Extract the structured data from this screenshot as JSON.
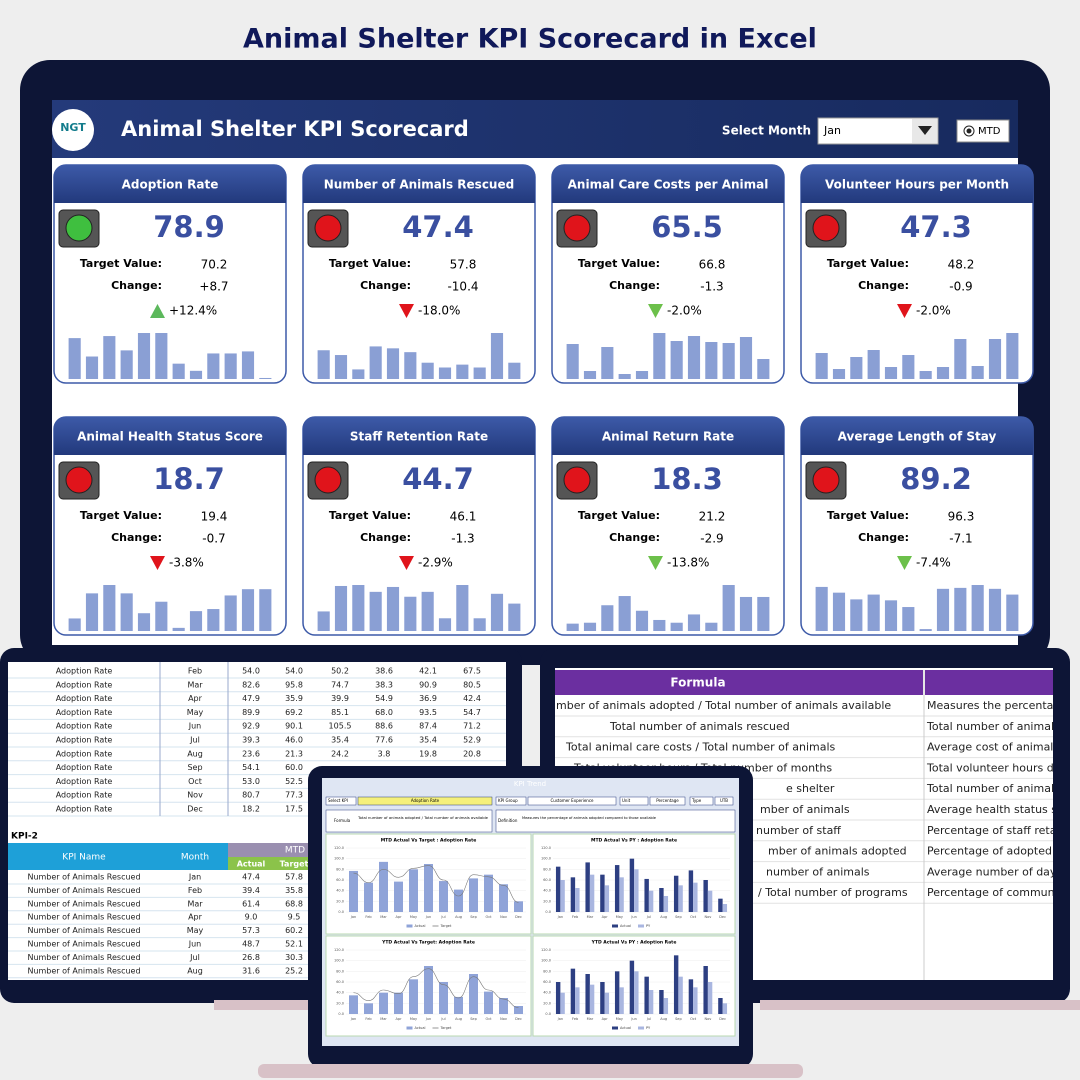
{
  "page_title": "Animal Shelter KPI Scorecard in Excel",
  "dashboard": {
    "logo": "NGT",
    "title": "Animal Shelter KPI Scorecard",
    "select_label": "Select Month",
    "month": "Jan",
    "mode": "MTD",
    "target_label": "Target Value:",
    "change_label": "Change:",
    "cards": [
      {
        "name": "Adoption Rate",
        "light": "#3fbf3f",
        "value": "78.9",
        "target": "70.2",
        "change": "+8.7",
        "pct": "+12.4%",
        "direction": "up",
        "arrow_color": "#5cb85c",
        "bar_color": "#8a9fd4",
        "bars": [
          40,
          22,
          42,
          28,
          45,
          45,
          15,
          8,
          25,
          25,
          27,
          1
        ]
      },
      {
        "name": "Number of Animals Rescued",
        "light": "#e0141b",
        "value": "47.4",
        "target": "57.8",
        "change": "-10.4",
        "pct": "-18.0%",
        "direction": "down",
        "arrow_color": "#e0141b",
        "bar_color": "#8a9fd4",
        "bars": [
          30,
          25,
          10,
          34,
          32,
          28,
          17,
          12,
          15,
          12,
          48,
          17
        ]
      },
      {
        "name": "Animal Care Costs per Animal",
        "light": "#e0141b",
        "value": "65.5",
        "target": "66.8",
        "change": "-1.3",
        "pct": "-2.0%",
        "direction": "down",
        "arrow_color": "#6cc04a",
        "bar_color": "#8a9fd4",
        "bars": [
          35,
          8,
          32,
          5,
          8,
          46,
          38,
          43,
          37,
          36,
          42,
          20
        ]
      },
      {
        "name": "Volunteer Hours per Month",
        "light": "#e0141b",
        "value": "47.3",
        "target": "48.2",
        "change": "-0.9",
        "pct": "-2.0%",
        "direction": "down",
        "arrow_color": "#e0141b",
        "bar_color": "#8a9fd4",
        "bars": [
          26,
          10,
          22,
          29,
          12,
          24,
          8,
          12,
          40,
          13,
          40,
          46
        ]
      },
      {
        "name": "Animal Health Status Score",
        "light": "#e0141b",
        "value": "18.7",
        "target": "19.4",
        "change": "-0.7",
        "pct": "-3.8%",
        "direction": "down",
        "arrow_color": "#e0141b",
        "bar_color": "#8a9fd4",
        "bars": [
          12,
          36,
          44,
          36,
          17,
          28,
          3,
          19,
          21,
          34,
          40,
          40
        ]
      },
      {
        "name": "Staff Retention Rate",
        "light": "#e0141b",
        "value": "44.7",
        "target": "46.1",
        "change": "-1.3",
        "pct": "-2.9%",
        "direction": "down",
        "arrow_color": "#e0141b",
        "bar_color": "#8a9fd4",
        "bars": [
          20,
          46,
          47,
          40,
          45,
          35,
          40,
          13,
          47,
          13,
          38,
          28
        ]
      },
      {
        "name": "Animal Return Rate",
        "light": "#e0141b",
        "value": "18.3",
        "target": "21.2",
        "change": "-2.9",
        "pct": "-13.8%",
        "direction": "down",
        "arrow_color": "#6cc04a",
        "bar_color": "#8a9fd4",
        "bars": [
          8,
          9,
          28,
          38,
          22,
          12,
          9,
          18,
          9,
          50,
          37,
          37
        ]
      },
      {
        "name": "Average Length of Stay",
        "light": "#e0141b",
        "value": "89.2",
        "target": "96.3",
        "change": "-7.1",
        "pct": "-7.4%",
        "direction": "down",
        "arrow_color": "#6cc04a",
        "bar_color": "#8a9fd4",
        "bars": [
          46,
          40,
          33,
          38,
          32,
          25,
          2,
          44,
          45,
          48,
          44,
          38
        ]
      }
    ]
  },
  "left_sheet": {
    "kpi1_rows": [
      [
        "Adoption Rate",
        "Feb",
        "54.0",
        "54.0",
        "50.2",
        "38.6",
        "42.1",
        "67.5"
      ],
      [
        "Adoption Rate",
        "Mar",
        "82.6",
        "95.8",
        "74.7",
        "38.3",
        "90.9",
        "80.5"
      ],
      [
        "Adoption Rate",
        "Apr",
        "47.9",
        "35.9",
        "39.9",
        "54.9",
        "36.9",
        "42.4"
      ],
      [
        "Adoption Rate",
        "May",
        "89.9",
        "69.2",
        "85.1",
        "68.0",
        "93.5",
        "54.7"
      ],
      [
        "Adoption Rate",
        "Jun",
        "92.9",
        "90.1",
        "105.5",
        "88.6",
        "87.4",
        "71.2"
      ],
      [
        "Adoption Rate",
        "Jul",
        "39.3",
        "46.0",
        "35.4",
        "77.6",
        "35.4",
        "52.9"
      ],
      [
        "Adoption Rate",
        "Aug",
        "23.6",
        "21.3",
        "24.2",
        "3.8",
        "19.8",
        "20.8"
      ],
      [
        "Adoption Rate",
        "Sep",
        "54.1",
        "60.0"
      ],
      [
        "Adoption Rate",
        "Oct",
        "53.0",
        "52.5"
      ],
      [
        "Adoption Rate",
        "Nov",
        "80.7",
        "77.3"
      ],
      [
        "Adoption Rate",
        "Dec",
        "18.2",
        "17.5"
      ]
    ],
    "kpi2_label": "KPI-2",
    "kpi2_header": [
      "KPI Name",
      "Month"
    ],
    "kpi2_group": "MTD",
    "kpi2_sub": [
      "Actual",
      "Target"
    ],
    "kpi2_rows": [
      [
        "Number of Animals Rescued",
        "Jan",
        "47.4",
        "57.8"
      ],
      [
        "Number of Animals Rescued",
        "Feb",
        "39.4",
        "35.8"
      ],
      [
        "Number of Animals Rescued",
        "Mar",
        "61.4",
        "68.8"
      ],
      [
        "Number of Animals Rescued",
        "Apr",
        "9.0",
        "9.5"
      ],
      [
        "Number of Animals Rescued",
        "May",
        "57.3",
        "60.2"
      ],
      [
        "Number of Animals Rescued",
        "Jun",
        "48.7",
        "52.1"
      ],
      [
        "Number of Animals Rescued",
        "Jul",
        "26.8",
        "30.3"
      ],
      [
        "Number of Animals Rescued",
        "Aug",
        "31.6",
        "25.2"
      ]
    ]
  },
  "right_sheet": {
    "header": "Formula",
    "rows": [
      [
        "mber of animals adopted / Total number of animals available",
        "Measures the percentag"
      ],
      [
        "Total number of animals rescued",
        "Total number of animals"
      ],
      [
        "Total animal care costs / Total number of animals",
        "Average cost of animal c"
      ],
      [
        "Total volunteer hours / Total number of months",
        "Total volunteer hours de"
      ],
      [
        "e shelter",
        "Total number of animals"
      ],
      [
        "mber of animals",
        "Average health status sc"
      ],
      [
        "number of staff",
        "Percentage of staff retai"
      ],
      [
        "mber of animals adopted",
        "Percentage of adopted a"
      ],
      [
        "number of animals",
        "Average number of days"
      ],
      [
        "/ Total number of programs",
        "Percentage of communi"
      ]
    ]
  },
  "tablet": {
    "title": "KPI Trend",
    "fields": [
      [
        "Select KPI",
        "Adoption Rate"
      ],
      [
        "KPI Group",
        "Customer Experience"
      ],
      [
        "Unit",
        "Percentage"
      ],
      [
        "Type",
        "UTB"
      ]
    ],
    "formula_label": "Formula",
    "formula": "Total number of animals adopted / Total number of animals available",
    "definition_label": "Definition",
    "definition": "Measures the percentage of animals adopted compared to those available",
    "months": [
      "Jan",
      "Feb",
      "Mar",
      "Apr",
      "May",
      "Jun",
      "Jul",
      "Aug",
      "Sep",
      "Oct",
      "Nov",
      "Dec"
    ],
    "ylim": [
      0,
      120
    ],
    "yticks": [
      {
        "value": 0,
        "label": "0.0"
      },
      {
        "value": 20,
        "label": "20.0"
      },
      {
        "value": 40,
        "label": "40.0"
      },
      {
        "value": 60,
        "label": "60.0"
      },
      {
        "value": 80,
        "label": "80.0"
      },
      {
        "value": 100,
        "label": "100.0"
      },
      {
        "value": 120,
        "label": "120.0"
      }
    ],
    "charts": [
      {
        "title": "MTD Actual Vs Target : Adoption Rate",
        "series": [
          {
            "name": "Actual",
            "kind": "bar",
            "color": "#8fa3d8",
            "values": [
              77,
              55,
              94,
              57,
              80,
              90,
              58,
              42,
              63,
              70,
              52,
              20
            ]
          },
          {
            "name": "Target",
            "kind": "line",
            "color": "#7a7a7a",
            "values": [
              73,
              55,
              80,
              65,
              82,
              87,
              60,
              30,
              70,
              66,
              50,
              18
            ]
          }
        ]
      },
      {
        "title": "MTD Actual Vs PY : Adoption Rate",
        "series": [
          {
            "name": "Actual",
            "kind": "bar",
            "color": "#2d3f82",
            "values": [
              85,
              65,
              93,
              70,
              88,
              100,
              62,
              45,
              68,
              78,
              60,
              25
            ]
          },
          {
            "name": "PY",
            "kind": "bar",
            "color": "#a9b6e0",
            "values": [
              60,
              45,
              70,
              50,
              65,
              80,
              40,
              30,
              50,
              55,
              40,
              15
            ]
          }
        ]
      },
      {
        "title": "YTD Actual Vs Target: Adoption Rate",
        "series": [
          {
            "name": "Actual",
            "kind": "bar",
            "color": "#8fa3d8",
            "values": [
              35,
              20,
              40,
              40,
              65,
              90,
              60,
              32,
              75,
              42,
              30,
              15
            ]
          },
          {
            "name": "Target",
            "kind": "line",
            "color": "#7a7a7a",
            "values": [
              40,
              25,
              45,
              38,
              70,
              85,
              55,
              30,
              70,
              45,
              28,
              12
            ]
          }
        ]
      },
      {
        "title": "YTD Actual Vs PY : Adoption Rate",
        "series": [
          {
            "name": "Actual",
            "kind": "bar",
            "color": "#2d3f82",
            "values": [
              60,
              85,
              75,
              60,
              80,
              100,
              70,
              45,
              110,
              65,
              90,
              30
            ]
          },
          {
            "name": "PY",
            "kind": "bar",
            "color": "#a9b6e0",
            "values": [
              40,
              50,
              55,
              40,
              50,
              80,
              45,
              30,
              70,
              50,
              60,
              20
            ]
          }
        ]
      }
    ]
  }
}
